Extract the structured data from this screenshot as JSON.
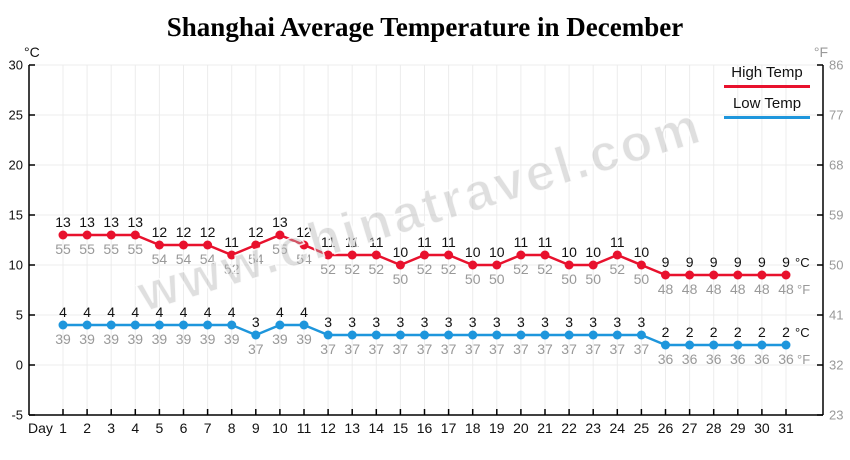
{
  "title": "Shanghai Average Temperature in December",
  "watermark": "www.chinatravel.com",
  "legend": {
    "position": "top-right"
  },
  "axes": {
    "left_unit": "°C",
    "right_unit": "°F",
    "x_label": "Day"
  },
  "colors": {
    "grid": "#ececec",
    "axis": "#000000",
    "text": "#111111",
    "muted": "#999999"
  },
  "chart_data": {
    "type": "line",
    "title": "Shanghai Average Temperature in December",
    "xlabel": "Day",
    "x": [
      1,
      2,
      3,
      4,
      5,
      6,
      7,
      8,
      9,
      10,
      11,
      12,
      13,
      14,
      15,
      16,
      17,
      18,
      19,
      20,
      21,
      22,
      23,
      24,
      25,
      26,
      27,
      28,
      29,
      30,
      31
    ],
    "series": [
      {
        "name": "High Temp",
        "color": "#e8112d",
        "unit": "°C",
        "values_c": [
          13,
          13,
          13,
          13,
          12,
          12,
          12,
          11,
          12,
          13,
          12,
          11,
          11,
          11,
          10,
          11,
          11,
          10,
          10,
          11,
          11,
          10,
          10,
          11,
          10,
          9,
          9,
          9,
          9,
          9,
          9
        ],
        "values_f": [
          55,
          55,
          55,
          55,
          54,
          54,
          54,
          52,
          54,
          55,
          54,
          52,
          52,
          52,
          50,
          52,
          52,
          50,
          50,
          52,
          52,
          50,
          50,
          52,
          50,
          48,
          48,
          48,
          48,
          48,
          48
        ]
      },
      {
        "name": "Low Temp",
        "color": "#1e96dc",
        "unit": "°C",
        "values_c": [
          4,
          4,
          4,
          4,
          4,
          4,
          4,
          4,
          3,
          4,
          4,
          3,
          3,
          3,
          3,
          3,
          3,
          3,
          3,
          3,
          3,
          3,
          3,
          3,
          3,
          2,
          2,
          2,
          2,
          2,
          2
        ],
        "values_f": [
          39,
          39,
          39,
          39,
          39,
          39,
          39,
          39,
          37,
          39,
          39,
          37,
          37,
          37,
          37,
          37,
          37,
          37,
          37,
          37,
          37,
          37,
          37,
          37,
          37,
          36,
          36,
          36,
          36,
          36,
          36
        ]
      }
    ],
    "ylim_c": [
      -5,
      30
    ],
    "ylim_f": [
      23,
      86
    ],
    "y_ticks_c": [
      30,
      25,
      20,
      15,
      10,
      5,
      0,
      -5
    ],
    "y_ticks_f": [
      86,
      77,
      68,
      59,
      50,
      41,
      32,
      23
    ],
    "grid": true,
    "legend_position": "top-right"
  }
}
